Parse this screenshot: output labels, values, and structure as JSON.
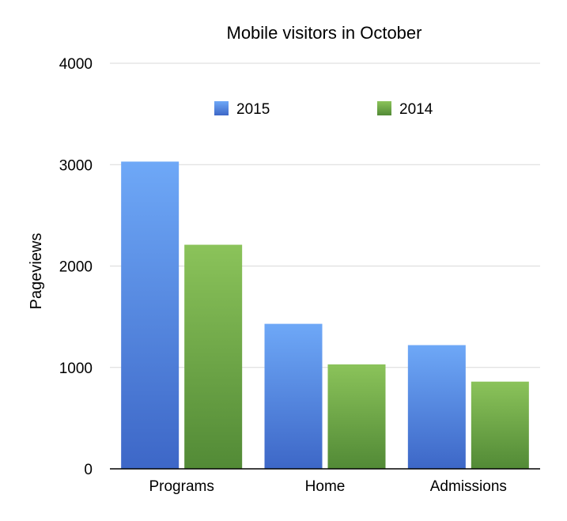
{
  "chart_data": {
    "type": "bar",
    "title": "Mobile visitors in October",
    "xlabel": "",
    "ylabel": "Pageviews",
    "categories": [
      "Programs",
      "Home",
      "Admissions"
    ],
    "series": [
      {
        "name": "2015",
        "values": [
          3030,
          1430,
          1220
        ],
        "color": "#4f84df",
        "color_top": "#6ea8f7",
        "color_bottom": "#3d67c7"
      },
      {
        "name": "2014",
        "values": [
          2210,
          1030,
          860
        ],
        "color": "#6ea64a",
        "color_top": "#8bc35a",
        "color_bottom": "#528a36"
      }
    ],
    "ylim": [
      0,
      4000
    ],
    "yticks": [
      0,
      1000,
      2000,
      3000,
      4000
    ],
    "grid": true,
    "legend_position": "top",
    "gridline_color": "#d9d9d9",
    "axis_color": "#000000"
  }
}
